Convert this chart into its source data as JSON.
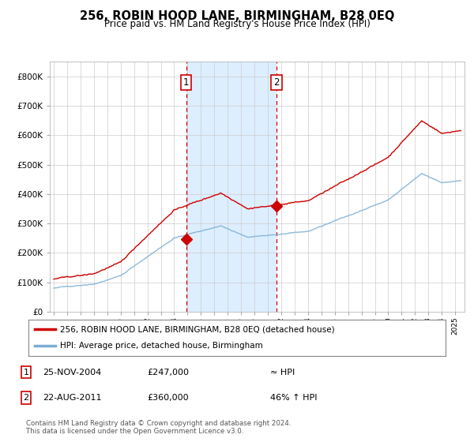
{
  "title": "256, ROBIN HOOD LANE, BIRMINGHAM, B28 0EQ",
  "subtitle": "Price paid vs. HM Land Registry's House Price Index (HPI)",
  "legend_line1": "256, ROBIN HOOD LANE, BIRMINGHAM, B28 0EQ (detached house)",
  "legend_line2": "HPI: Average price, detached house, Birmingham",
  "annotation1_label": "1",
  "annotation1_date": "25-NOV-2004",
  "annotation1_price": "£247,000",
  "annotation1_hpi": "≈ HPI",
  "annotation2_label": "2",
  "annotation2_date": "22-AUG-2011",
  "annotation2_price": "£360,000",
  "annotation2_hpi": "46% ↑ HPI",
  "footer": "Contains HM Land Registry data © Crown copyright and database right 2024.\nThis data is licensed under the Open Government Licence v3.0.",
  "red_color": "#cc0000",
  "blue_color": "#7aaed4",
  "shading_color": "#ddeeff",
  "grid_color": "#cccccc",
  "marker1_x_year": 2004.9,
  "marker1_y": 247000,
  "marker2_x_year": 2011.65,
  "marker2_y": 360000,
  "vline1_x": 2004.9,
  "vline2_x": 2011.65,
  "shade_x_start": 2004.9,
  "shade_x_end": 2011.65,
  "ylim": [
    0,
    850000
  ],
  "xlim_start": 1994.7,
  "xlim_end": 2025.7,
  "hpi_start_year": 1995.0,
  "hpi_end_year": 2025.5,
  "hpi_seed": 42
}
